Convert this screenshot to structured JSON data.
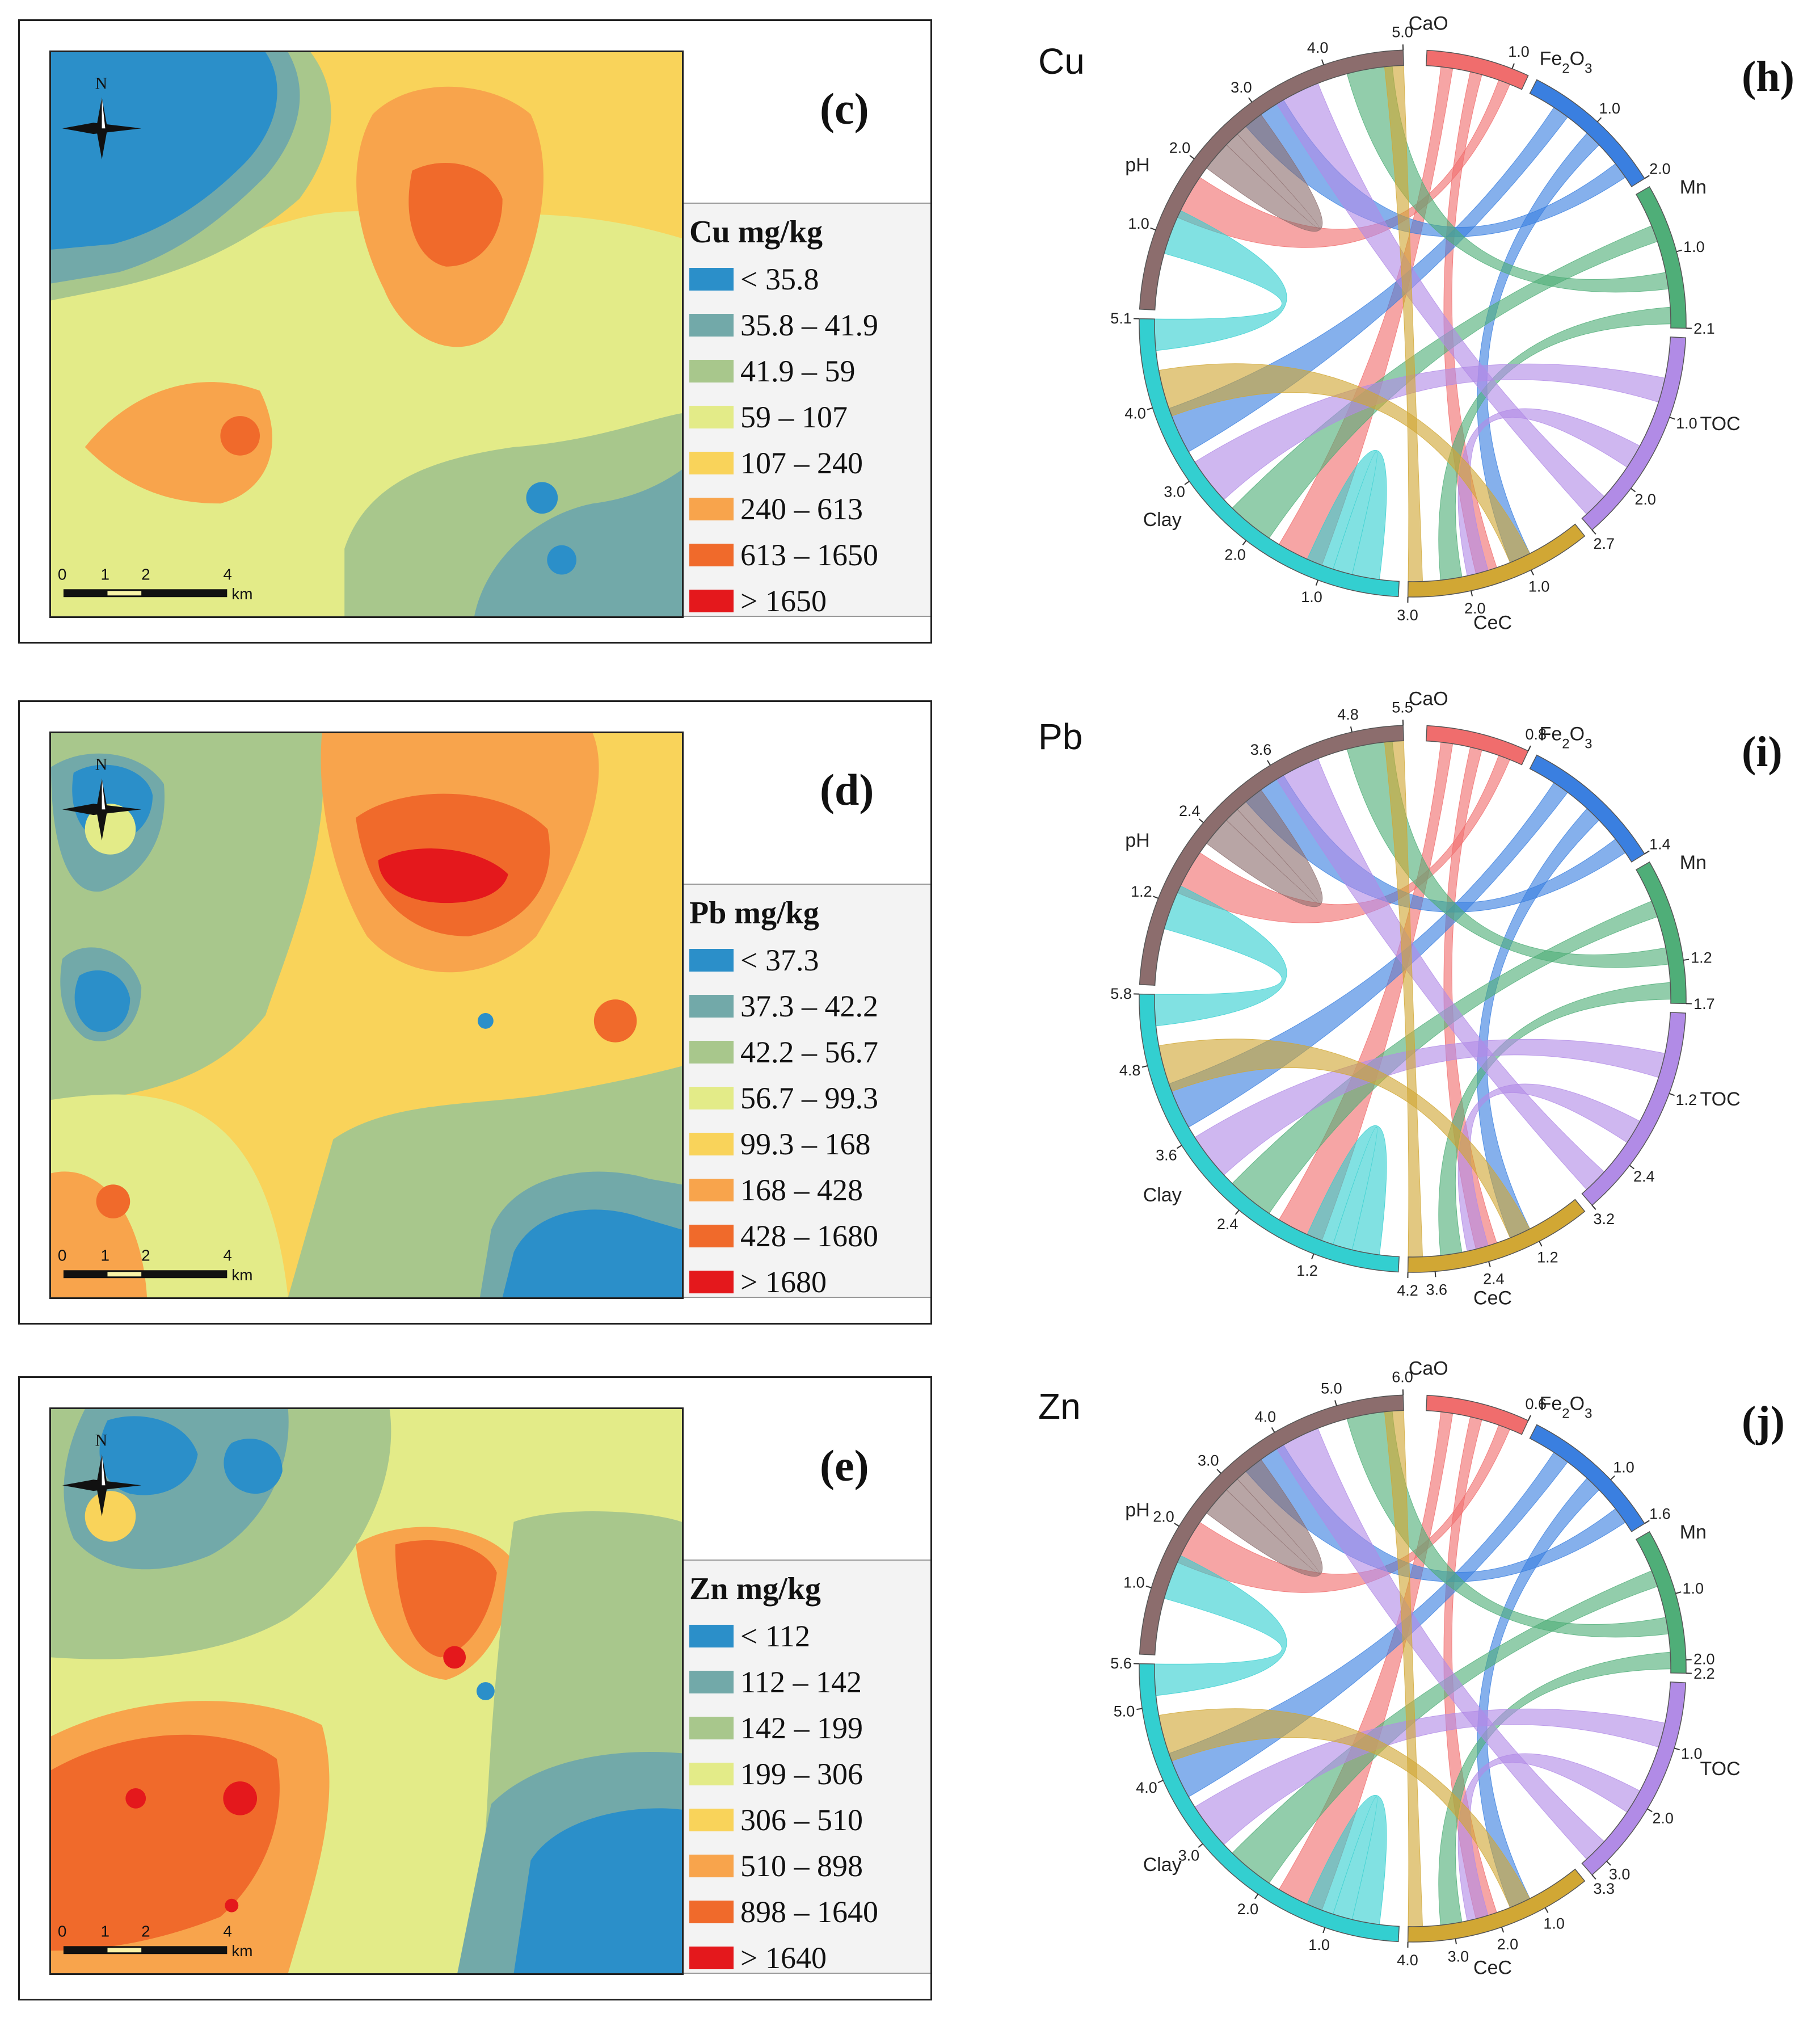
{
  "colors": [
    "#2b8fc9",
    "#72a9a9",
    "#a8c78c",
    "#e3eb88",
    "#f9d35a",
    "#f8a44c",
    "#f06a2b",
    "#e4181c"
  ],
  "map_panels": [
    {
      "label": "(c)",
      "legend_title": "Cu mg/kg",
      "classes": [
        "< 35.8",
        "35.8 – 41.9",
        "41.9 – 59",
        "59 – 107",
        "107 – 240",
        "240 – 613",
        "613 – 1650",
        "> 1650"
      ]
    },
    {
      "label": "(d)",
      "legend_title": "Pb mg/kg",
      "classes": [
        "< 37.3",
        "37.3 – 42.2",
        "42.2 – 56.7",
        "56.7 – 99.3",
        "99.3 – 168",
        "168 – 428",
        "428 – 1680",
        "> 1680"
      ]
    },
    {
      "label": "(e)",
      "legend_title": "Zn mg/kg",
      "classes": [
        "< 112",
        "112 – 142",
        "142 – 199",
        "199 – 306",
        "306 – 510",
        "510 – 898",
        "898 – 1640",
        "> 1640"
      ]
    }
  ],
  "map_common": {
    "north": "N",
    "scale_ticks": [
      "0",
      "1",
      "2",
      "4"
    ],
    "scale_unit": "km"
  },
  "chord_common": {
    "sectors": [
      "CaO",
      "Fe2O3",
      "Mn",
      "TOC",
      "CeC",
      "Clay",
      "pH"
    ],
    "sector_colors": [
      "#f06d6d",
      "#3a7fe0",
      "#4fae78",
      "#b18be6",
      "#d1a734",
      "#33cfd0",
      "#8c6d6d"
    ]
  },
  "chord_panels": [
    {
      "metal": "Cu",
      "label": "(h)",
      "chart_data": {
        "type": "chord",
        "title": "Cu",
        "sectors": [
          "CaO",
          "Fe2O3",
          "Mn",
          "TOC",
          "CeC",
          "Clay",
          "pH"
        ],
        "sector_totals": [
          1.2,
          2.0,
          2.1,
          2.7,
          3.0,
          5.1,
          5.0
        ],
        "tick_labels": [
          [
            "1.0"
          ],
          [
            "1.0",
            "2.0"
          ],
          [
            "1.0",
            "2.1"
          ],
          [
            "1.0",
            "2.0",
            "2.7"
          ],
          [
            "1.0",
            "2.0",
            "3.0"
          ],
          [
            "1.0",
            "2.0",
            "3.0",
            "4.0",
            "5.1"
          ],
          [
            "1.0",
            "2.0",
            "3.0",
            "4.0",
            "5.0"
          ]
        ]
      }
    },
    {
      "metal": "Pb",
      "label": "(i)",
      "chart_data": {
        "type": "chord",
        "title": "Pb",
        "sectors": [
          "CaO",
          "Fe2O3",
          "Mn",
          "TOC",
          "CeC",
          "Clay",
          "pH"
        ],
        "sector_totals": [
          0.8,
          1.4,
          1.7,
          3.2,
          4.2,
          5.8,
          5.5
        ],
        "tick_labels": [
          [
            "0.8"
          ],
          [
            "1.4"
          ],
          [
            "1.2",
            "1.7"
          ],
          [
            "1.2",
            "2.4",
            "3.2"
          ],
          [
            "1.2",
            "2.4",
            "3.6",
            "4.2"
          ],
          [
            "1.2",
            "2.4",
            "3.6",
            "4.8",
            "5.8"
          ],
          [
            "1.2",
            "2.4",
            "3.6",
            "4.8",
            "5.5"
          ]
        ]
      }
    },
    {
      "metal": "Zn",
      "label": "(j)",
      "chart_data": {
        "type": "chord",
        "title": "Zn",
        "sectors": [
          "CaO",
          "Fe2O3",
          "Mn",
          "TOC",
          "CeC",
          "Clay",
          "pH"
        ],
        "sector_totals": [
          0.6,
          1.6,
          2.2,
          3.3,
          4.0,
          5.6,
          6.0
        ],
        "tick_labels": [
          [
            "0.6"
          ],
          [
            "1.0",
            "1.6"
          ],
          [
            "1.0",
            "2.0",
            "2.2"
          ],
          [
            "1.0",
            "2.0",
            "3.0",
            "3.3"
          ],
          [
            "1.0",
            "2.0",
            "3.0",
            "4.0"
          ],
          [
            "1.0",
            "2.0",
            "3.0",
            "4.0",
            "5.0",
            "5.6"
          ],
          [
            "1.0",
            "2.0",
            "3.0",
            "4.0",
            "5.0",
            "6.0"
          ]
        ]
      }
    }
  ]
}
